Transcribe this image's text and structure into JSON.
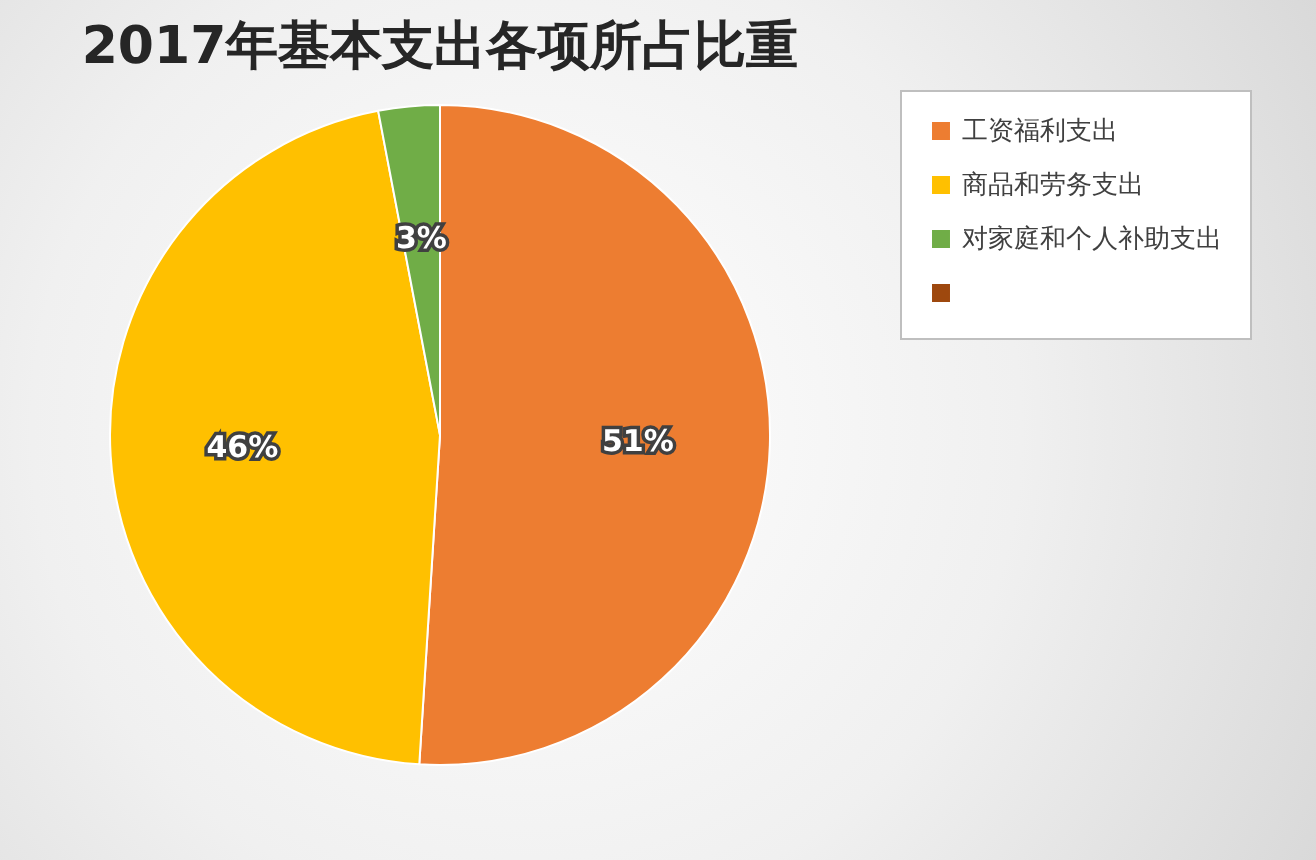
{
  "chart_data": {
    "type": "pie",
    "title": "2017年基本支出各项所占比重",
    "categories": [
      "工资福利支出",
      "商品和劳务支出",
      "对家庭和个人补助支出",
      null
    ],
    "values": [
      51,
      46,
      3,
      0
    ],
    "colors": [
      "#ed7d31",
      "#ffc000",
      "#70ad47",
      "#9e480e"
    ],
    "value_labels": [
      "51%",
      "46%",
      "3%",
      null
    ],
    "legend": "right"
  }
}
